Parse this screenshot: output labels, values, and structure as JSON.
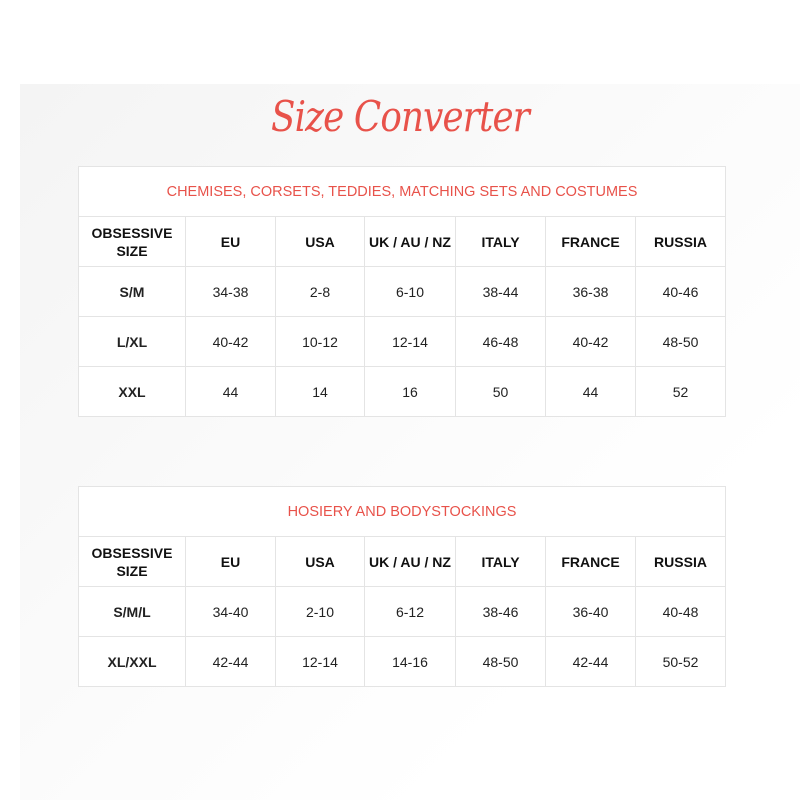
{
  "title": "Size Converter",
  "accent_color": "#e8524a",
  "tables": [
    {
      "caption": "CHEMISES, CORSETS, TEDDIES, MATCHING SETS AND COSTUMES",
      "headers": [
        "OBSESSIVE SIZE",
        "EU",
        "USA",
        "UK / AU / NZ",
        "ITALY",
        "FRANCE",
        "RUSSIA"
      ],
      "rows": [
        [
          "S/M",
          "34-38",
          "2-8",
          "6-10",
          "38-44",
          "36-38",
          "40-46"
        ],
        [
          "L/XL",
          "40-42",
          "10-12",
          "12-14",
          "46-48",
          "40-42",
          "48-50"
        ],
        [
          "XXL",
          "44",
          "14",
          "16",
          "50",
          "44",
          "52"
        ]
      ]
    },
    {
      "caption": "HOSIERY AND BODYSTOCKINGS",
      "headers": [
        "OBSESSIVE SIZE",
        "EU",
        "USA",
        "UK / AU / NZ",
        "ITALY",
        "FRANCE",
        "RUSSIA"
      ],
      "rows": [
        [
          "S/M/L",
          "34-40",
          "2-10",
          "6-12",
          "38-46",
          "36-40",
          "40-48"
        ],
        [
          "XL/XXL",
          "42-44",
          "12-14",
          "14-16",
          "48-50",
          "42-44",
          "50-52"
        ]
      ]
    }
  ]
}
